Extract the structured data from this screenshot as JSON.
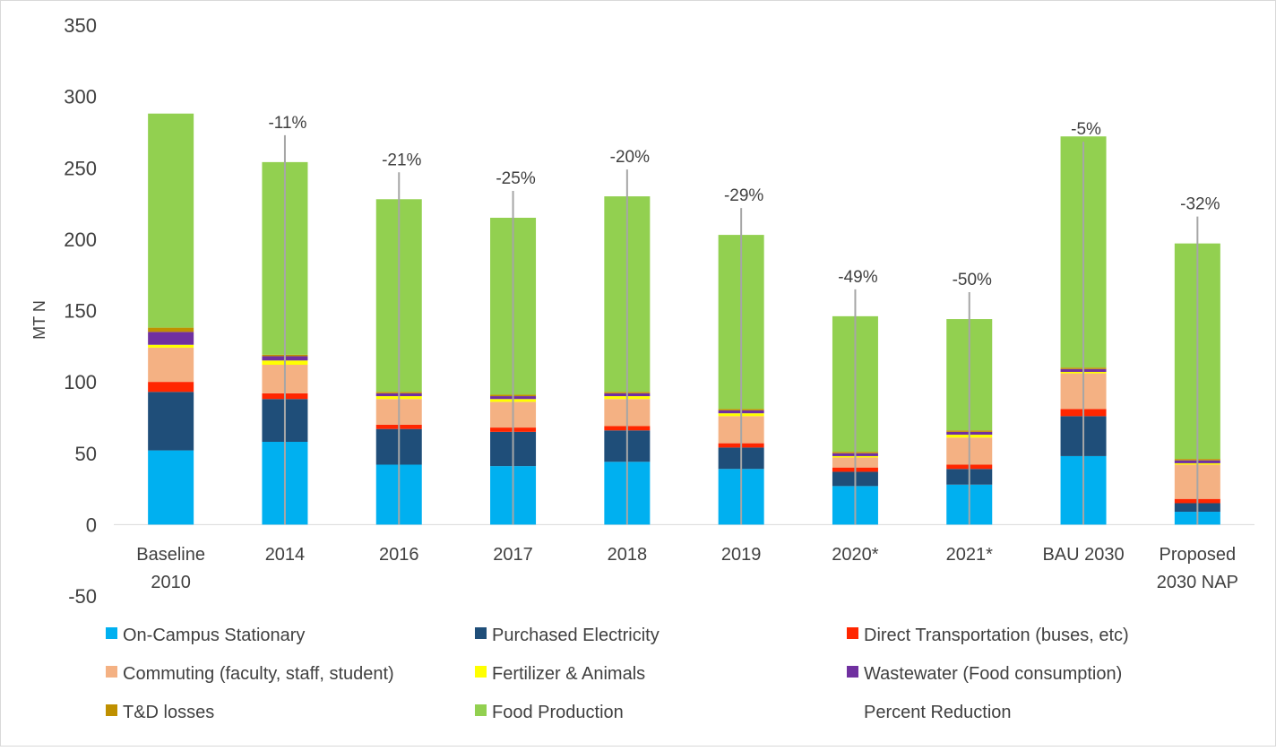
{
  "chart_data": {
    "type": "bar",
    "stacked": true,
    "ylabel": "MT N",
    "ylim": [
      -50,
      350
    ],
    "yticks": [
      350,
      300,
      250,
      200,
      150,
      100,
      50,
      0,
      -50
    ],
    "categories": [
      [
        "Baseline",
        "2010"
      ],
      [
        "2014"
      ],
      [
        "2016"
      ],
      [
        "2017"
      ],
      [
        "2018"
      ],
      [
        "2019"
      ],
      [
        "2020*"
      ],
      [
        "2021*"
      ],
      [
        "BAU 2030"
      ],
      [
        "Proposed",
        "2030 NAP"
      ]
    ],
    "series": [
      {
        "name": "On-Campus Stationary",
        "color": "#00B0F0",
        "values": [
          52,
          58,
          42,
          41,
          44,
          39,
          27,
          28,
          48,
          9
        ]
      },
      {
        "name": "Purchased Electricity",
        "color": "#1F4E79",
        "values": [
          41,
          30,
          25,
          24,
          22,
          15,
          10,
          11,
          28,
          6
        ]
      },
      {
        "name": "Direct Transportation (buses, etc)",
        "color": "#FF2600",
        "values": [
          7,
          4,
          3,
          3,
          3,
          3,
          3,
          3,
          5,
          3
        ]
      },
      {
        "name": "Commuting (faculty, staff, student)",
        "color": "#F4B183",
        "values": [
          24,
          20,
          18,
          18,
          19,
          19,
          7,
          19,
          25,
          24
        ]
      },
      {
        "name": "Fertilizer & Animals",
        "color": "#FFFF00",
        "values": [
          2,
          3,
          2,
          2,
          2,
          2,
          1,
          2,
          1,
          1
        ]
      },
      {
        "name": "Wastewater (Food consumption)",
        "color": "#7030A0",
        "values": [
          9,
          3,
          2,
          2,
          2,
          2,
          2,
          2,
          2,
          2
        ]
      },
      {
        "name": "T&D losses",
        "color": "#BF9000",
        "values": [
          3,
          1,
          1,
          1,
          1,
          1,
          1,
          1,
          1,
          1
        ]
      },
      {
        "name": "Food Production",
        "color": "#92D050",
        "values": [
          150,
          135,
          135,
          124,
          137,
          122,
          95,
          78,
          162,
          151
        ]
      }
    ],
    "percent_reduction": {
      "name": "Percent Reduction",
      "labels": [
        "",
        "-11%",
        "-21%",
        "-25%",
        "-20%",
        "-29%",
        "-49%",
        "-50%",
        "-5%",
        "-32%"
      ]
    },
    "legend_position": "bottom",
    "grid": false
  }
}
